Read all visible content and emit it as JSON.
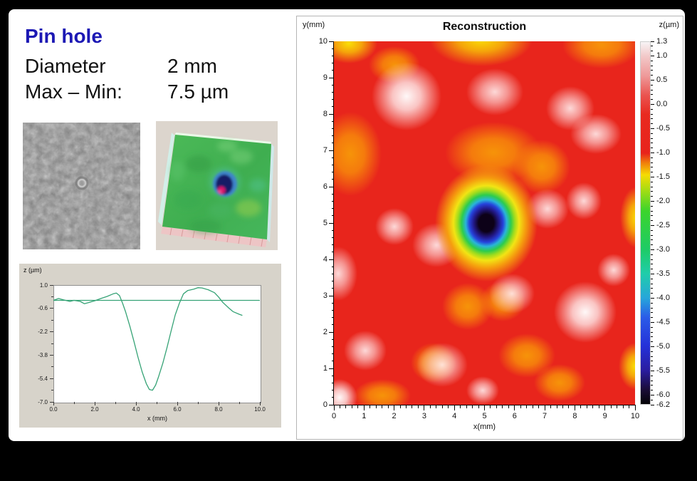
{
  "header": {
    "title": "Pin hole",
    "rows": [
      {
        "label": "Diameter",
        "value": "2 mm"
      },
      {
        "label": "Max – Min:",
        "value": "7.5 µm"
      }
    ]
  },
  "thumbnails": {
    "micrograph": "grayscale surface micrograph with central pinhole",
    "surface3d": "3d surface reconstruction with central pit"
  },
  "chart_data": [
    {
      "type": "line",
      "title": "",
      "xlabel": "x (mm)",
      "ylabel": "z (µm)",
      "xlim": [
        0,
        10
      ],
      "ylim": [
        -7.0,
        1.0
      ],
      "xtick_values": [
        0,
        2,
        4,
        6,
        8,
        10
      ],
      "xtick_labels": [
        "0.0",
        "2.0",
        "4.0",
        "6.0",
        "8.0",
        "10.0"
      ],
      "ytick_values": [
        1.0,
        -0.6,
        -2.2,
        -3.8,
        -5.4,
        -7.0
      ],
      "ytick_labels": [
        "1.0",
        "-0.6",
        "-2.2",
        "-3.8",
        "-5.4",
        "-7.0"
      ],
      "line_color": "#36a376",
      "series": [
        {
          "name": "height-profile",
          "points": [
            [
              0,
              -0.05
            ],
            [
              0.25,
              0.08
            ],
            [
              0.5,
              -0.02
            ],
            [
              0.8,
              -0.12
            ],
            [
              1.0,
              -0.05
            ],
            [
              1.3,
              -0.12
            ],
            [
              1.5,
              -0.28
            ],
            [
              1.75,
              -0.18
            ],
            [
              2.0,
              -0.08
            ],
            [
              2.3,
              0.08
            ],
            [
              2.6,
              0.22
            ],
            [
              2.9,
              0.4
            ],
            [
              3.05,
              0.45
            ],
            [
              3.2,
              0.28
            ],
            [
              3.35,
              -0.25
            ],
            [
              3.5,
              -0.85
            ],
            [
              3.7,
              -1.8
            ],
            [
              3.9,
              -2.85
            ],
            [
              4.1,
              -3.95
            ],
            [
              4.3,
              -4.95
            ],
            [
              4.5,
              -5.75
            ],
            [
              4.65,
              -6.15
            ],
            [
              4.8,
              -6.2
            ],
            [
              4.95,
              -5.85
            ],
            [
              5.1,
              -5.25
            ],
            [
              5.3,
              -4.35
            ],
            [
              5.5,
              -3.3
            ],
            [
              5.7,
              -2.15
            ],
            [
              5.9,
              -1.05
            ],
            [
              6.1,
              -0.25
            ],
            [
              6.3,
              0.4
            ],
            [
              6.5,
              0.62
            ],
            [
              6.8,
              0.72
            ],
            [
              7.0,
              0.82
            ],
            [
              7.2,
              0.8
            ],
            [
              7.5,
              0.68
            ],
            [
              7.8,
              0.48
            ],
            [
              8.0,
              0.18
            ],
            [
              8.2,
              -0.18
            ],
            [
              8.5,
              -0.58
            ],
            [
              8.7,
              -0.82
            ],
            [
              9.0,
              -1.0
            ],
            [
              9.15,
              -1.08
            ]
          ]
        },
        {
          "name": "reference-line",
          "points": [
            [
              0,
              -0.05
            ],
            [
              10,
              -0.05
            ]
          ]
        }
      ]
    },
    {
      "type": "heatmap",
      "title": "Reconstruction",
      "xlabel": "x(mm)",
      "ylabel": "y(mm)",
      "zlabel": "z(µm)",
      "xlim": [
        0,
        10
      ],
      "ylim": [
        0,
        10
      ],
      "zlim": [
        -6.2,
        1.3
      ],
      "xtick_values": [
        0,
        1,
        2,
        3,
        4,
        5,
        6,
        7,
        8,
        9,
        10
      ],
      "ytick_values": [
        0,
        1,
        2,
        3,
        4,
        5,
        6,
        7,
        8,
        9,
        10
      ],
      "base_color": "#e8251c",
      "colorbar_labels": [
        "1.3",
        "1.0",
        "0.5",
        "0.0",
        "-0.5",
        "-1.0",
        "-1.5",
        "-2.0",
        "-2.5",
        "-3.0",
        "-3.5",
        "-4.0",
        "-4.5",
        "-5.0",
        "-5.5",
        "-6.0",
        "-6.2"
      ],
      "colorbar_stops": [
        [
          1.3,
          "#f7f4f5"
        ],
        [
          1.0,
          "#f2c8c8"
        ],
        [
          0.6,
          "#ee9a9a"
        ],
        [
          0.2,
          "#ea5450"
        ],
        [
          -0.2,
          "#e82a20"
        ],
        [
          -1.0,
          "#e8231c"
        ],
        [
          -1.2,
          "#f07c0c"
        ],
        [
          -1.45,
          "#f6dc02"
        ],
        [
          -1.8,
          "#9edc14"
        ],
        [
          -2.2,
          "#3bd42c"
        ],
        [
          -3.0,
          "#1ecb66"
        ],
        [
          -3.5,
          "#1fcdaa"
        ],
        [
          -4.0,
          "#27a6da"
        ],
        [
          -4.4,
          "#2a5ce8"
        ],
        [
          -5.0,
          "#2531d8"
        ],
        [
          -5.5,
          "#2a1da0"
        ],
        [
          -5.9,
          "#1b0d38"
        ],
        [
          -6.2,
          "#050306"
        ]
      ],
      "features": [
        {
          "x": 5.05,
          "y": 5.0,
          "rx": 1.7,
          "ry": 1.6,
          "kind": "pit",
          "z": -6.2
        },
        {
          "x": 2.4,
          "y": 8.5,
          "rx": 1.15,
          "ry": 0.95,
          "kind": "white",
          "z": 1.3
        },
        {
          "x": 5.35,
          "y": 8.6,
          "rx": 0.95,
          "ry": 0.65,
          "kind": "pink",
          "z": 1.0
        },
        {
          "x": 7.85,
          "y": 8.15,
          "rx": 0.8,
          "ry": 0.6,
          "kind": "pink",
          "z": 0.9
        },
        {
          "x": 8.7,
          "y": 7.45,
          "rx": 0.85,
          "ry": 0.55,
          "kind": "pink",
          "z": 0.8
        },
        {
          "x": 7.1,
          "y": 5.4,
          "rx": 0.7,
          "ry": 0.55,
          "kind": "pink",
          "z": 0.9
        },
        {
          "x": 8.3,
          "y": 5.6,
          "rx": 0.6,
          "ry": 0.5,
          "kind": "pink",
          "z": 0.8
        },
        {
          "x": 3.4,
          "y": 4.4,
          "rx": 0.8,
          "ry": 0.6,
          "kind": "pink",
          "z": 1.0
        },
        {
          "x": 0.15,
          "y": 3.6,
          "rx": 0.65,
          "ry": 0.75,
          "kind": "pink",
          "z": 0.8
        },
        {
          "x": 8.35,
          "y": 2.55,
          "rx": 1.05,
          "ry": 0.85,
          "kind": "white",
          "z": 1.2
        },
        {
          "x": 5.9,
          "y": 3.05,
          "rx": 0.75,
          "ry": 0.55,
          "kind": "pink",
          "z": 0.9
        },
        {
          "x": 1.05,
          "y": 1.5,
          "rx": 0.7,
          "ry": 0.55,
          "kind": "pink",
          "z": 0.8
        },
        {
          "x": 3.6,
          "y": 1.1,
          "rx": 0.85,
          "ry": 0.6,
          "kind": "pink",
          "z": 0.9
        },
        {
          "x": 0.2,
          "y": 0.2,
          "rx": 0.6,
          "ry": 0.5,
          "kind": "white",
          "z": 1.2
        },
        {
          "x": 2.0,
          "y": 4.9,
          "rx": 0.65,
          "ry": 0.5,
          "kind": "pink",
          "z": 0.7
        },
        {
          "x": 9.3,
          "y": 3.7,
          "rx": 0.55,
          "ry": 0.45,
          "kind": "pink",
          "z": 0.7
        },
        {
          "x": 4.95,
          "y": 0.4,
          "rx": 0.55,
          "ry": 0.4,
          "kind": "pink",
          "z": 0.7
        },
        {
          "x": 4.9,
          "y": 10.05,
          "rx": 1.7,
          "ry": 0.75,
          "kind": "yellow",
          "z": -1.5
        },
        {
          "x": 0.5,
          "y": 9.95,
          "rx": 0.95,
          "ry": 0.55,
          "kind": "yellow",
          "z": -1.2
        },
        {
          "x": 8.9,
          "y": 9.9,
          "rx": 1.3,
          "ry": 0.65,
          "kind": "orange",
          "z": -1.0
        },
        {
          "x": 0.55,
          "y": 6.9,
          "rx": 1.05,
          "ry": 1.15,
          "kind": "orange",
          "z": -1.0
        },
        {
          "x": 5.3,
          "y": 6.95,
          "rx": 1.6,
          "ry": 0.85,
          "kind": "orange",
          "z": -1.1
        },
        {
          "x": 6.9,
          "y": 6.55,
          "rx": 0.95,
          "ry": 0.75,
          "kind": "orange",
          "z": -1.0
        },
        {
          "x": 10.05,
          "y": 5.15,
          "rx": 0.55,
          "ry": 0.85,
          "kind": "yellow",
          "z": -1.5
        },
        {
          "x": 4.45,
          "y": 2.7,
          "rx": 0.85,
          "ry": 0.65,
          "kind": "orange",
          "z": -1.1
        },
        {
          "x": 5.6,
          "y": 2.85,
          "rx": 0.75,
          "ry": 0.55,
          "kind": "orange",
          "z": -1.0
        },
        {
          "x": 3.3,
          "y": 1.15,
          "rx": 0.75,
          "ry": 0.55,
          "kind": "orange",
          "z": -1.1
        },
        {
          "x": 6.4,
          "y": 1.35,
          "rx": 0.95,
          "ry": 0.6,
          "kind": "orange",
          "z": -1.0
        },
        {
          "x": 7.5,
          "y": 0.6,
          "rx": 0.85,
          "ry": 0.5,
          "kind": "orange",
          "z": -1.0
        },
        {
          "x": 10.0,
          "y": 1.05,
          "rx": 0.55,
          "ry": 0.65,
          "kind": "yellow",
          "z": -1.5
        },
        {
          "x": 1.6,
          "y": 0.25,
          "rx": 0.95,
          "ry": 0.45,
          "kind": "orange",
          "z": -1.0
        },
        {
          "x": 2.0,
          "y": 9.35,
          "rx": 0.85,
          "ry": 0.5,
          "kind": "orange",
          "z": -0.8
        }
      ]
    }
  ]
}
